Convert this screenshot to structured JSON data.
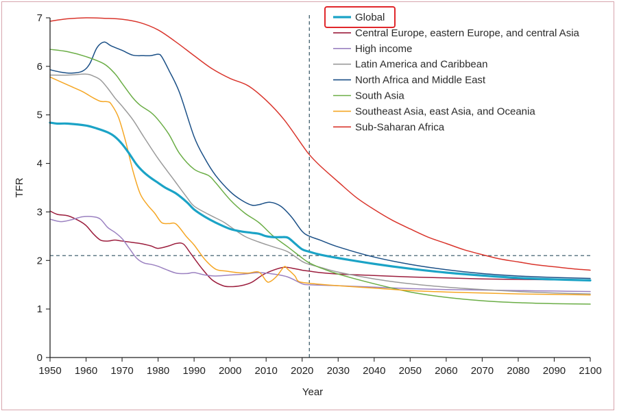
{
  "chart_data": {
    "type": "line",
    "title": "",
    "xlabel": "Year",
    "ylabel": "TFR",
    "xlim": [
      1950,
      2100
    ],
    "ylim": [
      0,
      7
    ],
    "x_ticks": [
      1950,
      1960,
      1970,
      1980,
      1990,
      2000,
      2010,
      2020,
      2030,
      2040,
      2050,
      2060,
      2070,
      2080,
      2090,
      2100
    ],
    "y_ticks": [
      0,
      1,
      2,
      3,
      4,
      5,
      6,
      7
    ],
    "reference_lines": {
      "vertical_year": 2022,
      "horizontal_tfr": 2.1
    },
    "legend_position": "top-right",
    "highlighted_legend_entry": "Global",
    "series": [
      {
        "name": "Global",
        "color": "#1ba3c6",
        "width": 3.2,
        "points": [
          [
            1950,
            4.84
          ],
          [
            1952,
            4.82
          ],
          [
            1955,
            4.82
          ],
          [
            1960,
            4.78
          ],
          [
            1963,
            4.72
          ],
          [
            1966,
            4.64
          ],
          [
            1968,
            4.55
          ],
          [
            1970,
            4.4
          ],
          [
            1972,
            4.2
          ],
          [
            1974,
            3.98
          ],
          [
            1976,
            3.82
          ],
          [
            1978,
            3.7
          ],
          [
            1980,
            3.6
          ],
          [
            1982,
            3.5
          ],
          [
            1985,
            3.38
          ],
          [
            1988,
            3.2
          ],
          [
            1990,
            3.05
          ],
          [
            1993,
            2.9
          ],
          [
            1996,
            2.78
          ],
          [
            2000,
            2.65
          ],
          [
            2003,
            2.6
          ],
          [
            2006,
            2.57
          ],
          [
            2008,
            2.55
          ],
          [
            2010,
            2.5
          ],
          [
            2012,
            2.48
          ],
          [
            2014,
            2.48
          ],
          [
            2016,
            2.47
          ],
          [
            2018,
            2.35
          ],
          [
            2020,
            2.23
          ],
          [
            2022,
            2.18
          ],
          [
            2025,
            2.12
          ],
          [
            2030,
            2.05
          ],
          [
            2040,
            1.93
          ],
          [
            2050,
            1.83
          ],
          [
            2060,
            1.75
          ],
          [
            2070,
            1.69
          ],
          [
            2080,
            1.64
          ],
          [
            2090,
            1.61
          ],
          [
            2100,
            1.59
          ]
        ]
      },
      {
        "name": "Central Europe, eastern Europe, and central Asia",
        "color": "#9b1c3c",
        "width": 1.5,
        "points": [
          [
            1950,
            3.02
          ],
          [
            1952,
            2.95
          ],
          [
            1955,
            2.92
          ],
          [
            1958,
            2.82
          ],
          [
            1960,
            2.72
          ],
          [
            1962,
            2.55
          ],
          [
            1964,
            2.42
          ],
          [
            1966,
            2.4
          ],
          [
            1968,
            2.42
          ],
          [
            1970,
            2.4
          ],
          [
            1975,
            2.35
          ],
          [
            1978,
            2.3
          ],
          [
            1980,
            2.25
          ],
          [
            1983,
            2.3
          ],
          [
            1985,
            2.35
          ],
          [
            1987,
            2.34
          ],
          [
            1989,
            2.15
          ],
          [
            1992,
            1.85
          ],
          [
            1995,
            1.6
          ],
          [
            1998,
            1.48
          ],
          [
            2000,
            1.46
          ],
          [
            2003,
            1.48
          ],
          [
            2006,
            1.55
          ],
          [
            2009,
            1.7
          ],
          [
            2012,
            1.8
          ],
          [
            2015,
            1.86
          ],
          [
            2018,
            1.83
          ],
          [
            2020,
            1.8
          ],
          [
            2022,
            1.78
          ],
          [
            2025,
            1.75
          ],
          [
            2030,
            1.72
          ],
          [
            2040,
            1.69
          ],
          [
            2050,
            1.66
          ],
          [
            2060,
            1.64
          ],
          [
            2070,
            1.62
          ],
          [
            2080,
            1.61
          ],
          [
            2090,
            1.6
          ],
          [
            2100,
            1.6
          ]
        ]
      },
      {
        "name": "High income",
        "color": "#9a80c0",
        "width": 1.5,
        "points": [
          [
            1950,
            2.85
          ],
          [
            1953,
            2.8
          ],
          [
            1956,
            2.84
          ],
          [
            1959,
            2.9
          ],
          [
            1962,
            2.9
          ],
          [
            1964,
            2.85
          ],
          [
            1966,
            2.68
          ],
          [
            1968,
            2.58
          ],
          [
            1970,
            2.45
          ],
          [
            1972,
            2.25
          ],
          [
            1974,
            2.05
          ],
          [
            1976,
            1.95
          ],
          [
            1978,
            1.92
          ],
          [
            1980,
            1.88
          ],
          [
            1982,
            1.82
          ],
          [
            1985,
            1.74
          ],
          [
            1988,
            1.73
          ],
          [
            1990,
            1.75
          ],
          [
            1993,
            1.7
          ],
          [
            1996,
            1.68
          ],
          [
            2000,
            1.7
          ],
          [
            2004,
            1.72
          ],
          [
            2008,
            1.75
          ],
          [
            2012,
            1.72
          ],
          [
            2016,
            1.66
          ],
          [
            2020,
            1.52
          ],
          [
            2022,
            1.5
          ],
          [
            2030,
            1.48
          ],
          [
            2040,
            1.45
          ],
          [
            2050,
            1.42
          ],
          [
            2060,
            1.4
          ],
          [
            2070,
            1.39
          ],
          [
            2080,
            1.38
          ],
          [
            2090,
            1.37
          ],
          [
            2100,
            1.36
          ]
        ]
      },
      {
        "name": "Latin America and Caribbean",
        "color": "#9a9a9a",
        "width": 1.5,
        "points": [
          [
            1950,
            5.82
          ],
          [
            1955,
            5.82
          ],
          [
            1960,
            5.84
          ],
          [
            1962,
            5.8
          ],
          [
            1964,
            5.72
          ],
          [
            1966,
            5.55
          ],
          [
            1968,
            5.35
          ],
          [
            1970,
            5.18
          ],
          [
            1973,
            4.9
          ],
          [
            1976,
            4.55
          ],
          [
            1980,
            4.1
          ],
          [
            1984,
            3.7
          ],
          [
            1988,
            3.3
          ],
          [
            1990,
            3.12
          ],
          [
            1994,
            2.95
          ],
          [
            1998,
            2.8
          ],
          [
            2000,
            2.7
          ],
          [
            2004,
            2.5
          ],
          [
            2008,
            2.38
          ],
          [
            2012,
            2.28
          ],
          [
            2016,
            2.18
          ],
          [
            2020,
            1.98
          ],
          [
            2022,
            1.92
          ],
          [
            2025,
            1.86
          ],
          [
            2030,
            1.76
          ],
          [
            2040,
            1.62
          ],
          [
            2050,
            1.52
          ],
          [
            2060,
            1.45
          ],
          [
            2070,
            1.4
          ],
          [
            2080,
            1.36
          ],
          [
            2090,
            1.33
          ],
          [
            2100,
            1.31
          ]
        ]
      },
      {
        "name": "North Africa and Middle East",
        "color": "#1a4f86",
        "width": 1.5,
        "points": [
          [
            1950,
            5.93
          ],
          [
            1953,
            5.88
          ],
          [
            1956,
            5.86
          ],
          [
            1959,
            5.9
          ],
          [
            1961,
            6.05
          ],
          [
            1963,
            6.38
          ],
          [
            1965,
            6.5
          ],
          [
            1967,
            6.42
          ],
          [
            1970,
            6.33
          ],
          [
            1973,
            6.23
          ],
          [
            1976,
            6.22
          ],
          [
            1978,
            6.22
          ],
          [
            1980,
            6.25
          ],
          [
            1981,
            6.2
          ],
          [
            1983,
            5.92
          ],
          [
            1986,
            5.45
          ],
          [
            1990,
            4.55
          ],
          [
            1993,
            4.1
          ],
          [
            1996,
            3.75
          ],
          [
            2000,
            3.42
          ],
          [
            2003,
            3.25
          ],
          [
            2006,
            3.14
          ],
          [
            2008,
            3.15
          ],
          [
            2011,
            3.2
          ],
          [
            2014,
            3.12
          ],
          [
            2017,
            2.9
          ],
          [
            2020,
            2.6
          ],
          [
            2022,
            2.5
          ],
          [
            2025,
            2.42
          ],
          [
            2030,
            2.28
          ],
          [
            2040,
            2.07
          ],
          [
            2050,
            1.92
          ],
          [
            2060,
            1.81
          ],
          [
            2070,
            1.73
          ],
          [
            2080,
            1.68
          ],
          [
            2090,
            1.65
          ],
          [
            2100,
            1.63
          ]
        ]
      },
      {
        "name": "South Asia",
        "color": "#6aad45",
        "width": 1.5,
        "points": [
          [
            1950,
            6.35
          ],
          [
            1955,
            6.3
          ],
          [
            1960,
            6.2
          ],
          [
            1965,
            6.05
          ],
          [
            1968,
            5.85
          ],
          [
            1970,
            5.65
          ],
          [
            1973,
            5.35
          ],
          [
            1975,
            5.2
          ],
          [
            1978,
            5.05
          ],
          [
            1980,
            4.9
          ],
          [
            1983,
            4.6
          ],
          [
            1986,
            4.2
          ],
          [
            1990,
            3.88
          ],
          [
            1994,
            3.75
          ],
          [
            1996,
            3.6
          ],
          [
            2000,
            3.25
          ],
          [
            2004,
            2.98
          ],
          [
            2008,
            2.78
          ],
          [
            2012,
            2.5
          ],
          [
            2016,
            2.28
          ],
          [
            2020,
            2.05
          ],
          [
            2022,
            1.95
          ],
          [
            2025,
            1.85
          ],
          [
            2030,
            1.72
          ],
          [
            2040,
            1.52
          ],
          [
            2050,
            1.35
          ],
          [
            2060,
            1.24
          ],
          [
            2070,
            1.17
          ],
          [
            2080,
            1.13
          ],
          [
            2090,
            1.11
          ],
          [
            2100,
            1.1
          ]
        ]
      },
      {
        "name": "Southeast Asia, east Asia, and Oceania",
        "color": "#f5a623",
        "width": 1.5,
        "points": [
          [
            1950,
            5.78
          ],
          [
            1953,
            5.68
          ],
          [
            1956,
            5.58
          ],
          [
            1959,
            5.48
          ],
          [
            1962,
            5.35
          ],
          [
            1964,
            5.28
          ],
          [
            1966,
            5.27
          ],
          [
            1967,
            5.22
          ],
          [
            1969,
            4.95
          ],
          [
            1971,
            4.45
          ],
          [
            1973,
            3.85
          ],
          [
            1975,
            3.38
          ],
          [
            1977,
            3.15
          ],
          [
            1979,
            2.98
          ],
          [
            1981,
            2.78
          ],
          [
            1983,
            2.76
          ],
          [
            1985,
            2.75
          ],
          [
            1988,
            2.48
          ],
          [
            1990,
            2.32
          ],
          [
            1993,
            2.02
          ],
          [
            1996,
            1.82
          ],
          [
            1999,
            1.78
          ],
          [
            2002,
            1.75
          ],
          [
            2005,
            1.74
          ],
          [
            2008,
            1.76
          ],
          [
            2010,
            1.58
          ],
          [
            2011,
            1.56
          ],
          [
            2013,
            1.68
          ],
          [
            2015,
            1.87
          ],
          [
            2016,
            1.82
          ],
          [
            2018,
            1.68
          ],
          [
            2019,
            1.57
          ],
          [
            2022,
            1.53
          ],
          [
            2030,
            1.48
          ],
          [
            2040,
            1.43
          ],
          [
            2050,
            1.38
          ],
          [
            2060,
            1.35
          ],
          [
            2070,
            1.33
          ],
          [
            2080,
            1.31
          ],
          [
            2090,
            1.3
          ],
          [
            2100,
            1.29
          ]
        ]
      },
      {
        "name": "Sub-Saharan Africa",
        "color": "#d9342b",
        "width": 1.5,
        "points": [
          [
            1950,
            6.93
          ],
          [
            1955,
            6.98
          ],
          [
            1960,
            7.0
          ],
          [
            1965,
            6.99
          ],
          [
            1970,
            6.97
          ],
          [
            1975,
            6.9
          ],
          [
            1980,
            6.75
          ],
          [
            1985,
            6.5
          ],
          [
            1990,
            6.22
          ],
          [
            1995,
            5.95
          ],
          [
            2000,
            5.75
          ],
          [
            2005,
            5.6
          ],
          [
            2010,
            5.3
          ],
          [
            2015,
            4.9
          ],
          [
            2020,
            4.38
          ],
          [
            2022,
            4.18
          ],
          [
            2025,
            3.95
          ],
          [
            2030,
            3.62
          ],
          [
            2035,
            3.3
          ],
          [
            2040,
            3.05
          ],
          [
            2045,
            2.83
          ],
          [
            2050,
            2.65
          ],
          [
            2055,
            2.48
          ],
          [
            2060,
            2.35
          ],
          [
            2065,
            2.22
          ],
          [
            2070,
            2.12
          ],
          [
            2075,
            2.03
          ],
          [
            2080,
            1.97
          ],
          [
            2085,
            1.91
          ],
          [
            2090,
            1.87
          ],
          [
            2095,
            1.83
          ],
          [
            2100,
            1.8
          ]
        ]
      }
    ]
  }
}
